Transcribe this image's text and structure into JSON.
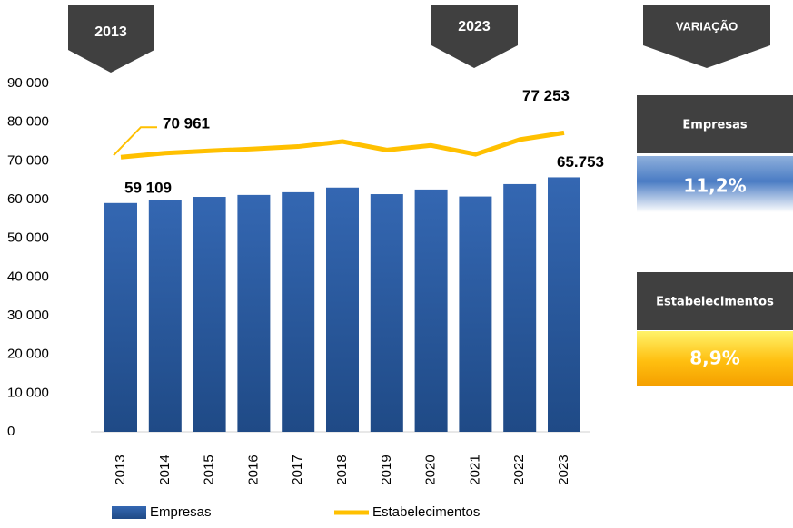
{
  "chart_data": {
    "type": "bar_line",
    "categories": [
      "2013",
      "2014",
      "2015",
      "2016",
      "2017",
      "2018",
      "2019",
      "2020",
      "2021",
      "2022",
      "2023"
    ],
    "series": [
      {
        "name": "Empresas",
        "type": "bar",
        "color": "#2e5fa6",
        "values": [
          59109,
          60000,
          60700,
          61200,
          61900,
          63100,
          61400,
          62600,
          60800,
          64000,
          65753
        ],
        "value_labels": [
          "59 109",
          null,
          null,
          null,
          null,
          null,
          null,
          null,
          null,
          null,
          "65.753"
        ],
        "label_color": "#1f4e8c"
      },
      {
        "name": "Estabelecimentos",
        "type": "line",
        "color": "#ffc000",
        "values": [
          70961,
          72000,
          72600,
          73100,
          73700,
          75000,
          72800,
          74000,
          71700,
          75500,
          77253
        ],
        "value_labels": [
          "70 961",
          null,
          null,
          null,
          null,
          null,
          null,
          null,
          null,
          null,
          "77 253"
        ],
        "label_color": "#f5b800"
      }
    ],
    "ylim": [
      0,
      90000
    ],
    "yticks": [
      0,
      {
        "value": 10000,
        "label": "10 000"
      },
      {
        "value": 20000,
        "label": "20 000"
      },
      {
        "value": 30000,
        "label": "30 000"
      },
      {
        "value": 40000,
        "label": "40 000"
      },
      {
        "value": 50000,
        "label": "50 000"
      },
      {
        "value": 60000,
        "label": "60 000"
      },
      {
        "value": 70000,
        "label": "70 000"
      },
      {
        "value": 80000,
        "label": "80 000"
      },
      {
        "value": 90000,
        "label": "90 000"
      }
    ],
    "grid": false,
    "legend": "bottom"
  },
  "markers": [
    "2013",
    "2023"
  ],
  "variation": {
    "title": "VARIAÇÃO",
    "items": [
      {
        "name": "Empresas",
        "value": "11,2%"
      },
      {
        "name": "Estabelecimentos",
        "value": "8,9%"
      }
    ]
  }
}
